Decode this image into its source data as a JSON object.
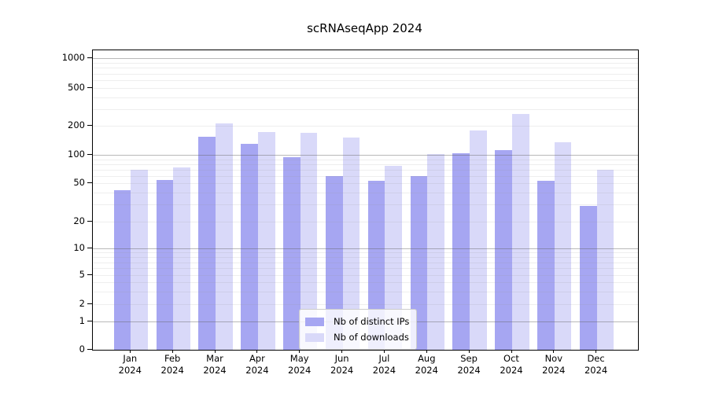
{
  "title": "scRNAseqApp 2024",
  "legend": {
    "items": [
      {
        "label": "Nb of distinct IPs",
        "color": "#a6a6f2"
      },
      {
        "label": "Nb of downloads",
        "color": "#d9d9f9"
      }
    ]
  },
  "axes": {
    "y_tick_labels": [
      "1000",
      "500",
      "200",
      "100",
      "50",
      "20",
      "10",
      "5",
      "2",
      "1",
      "0"
    ],
    "x_months": [
      "Jan",
      "Feb",
      "Mar",
      "Apr",
      "May",
      "Jun",
      "Jul",
      "Aug",
      "Sep",
      "Oct",
      "Nov",
      "Dec"
    ],
    "x_year": "2024"
  },
  "chart_data": {
    "type": "bar",
    "title": "scRNAseqApp 2024",
    "categories": [
      "Jan 2024",
      "Feb 2024",
      "Mar 2024",
      "Apr 2024",
      "May 2024",
      "Jun 2024",
      "Jul 2024",
      "Aug 2024",
      "Sep 2024",
      "Oct 2024",
      "Nov 2024",
      "Dec 2024"
    ],
    "series": [
      {
        "name": "Nb of distinct IPs",
        "color": "#a6a6f2",
        "values": [
          42,
          54,
          153,
          129,
          95,
          60,
          53,
          60,
          104,
          112,
          53,
          29
        ]
      },
      {
        "name": "Nb of downloads",
        "color": "#d9d9f9",
        "values": [
          70,
          73,
          213,
          173,
          168,
          150,
          76,
          102,
          179,
          268,
          136,
          69
        ]
      }
    ],
    "yscale": "symlog",
    "ylim": [
      0,
      1300
    ],
    "y_major_ticks": [
      0,
      1,
      2,
      5,
      10,
      20,
      50,
      100,
      200,
      500,
      1000
    ],
    "y_minor_gridlines": [
      2,
      3,
      4,
      5,
      6,
      7,
      8,
      9,
      20,
      30,
      40,
      50,
      60,
      70,
      80,
      90,
      200,
      300,
      400,
      500,
      600,
      700,
      800,
      900
    ],
    "grid": true,
    "legend_position": "lower center"
  }
}
